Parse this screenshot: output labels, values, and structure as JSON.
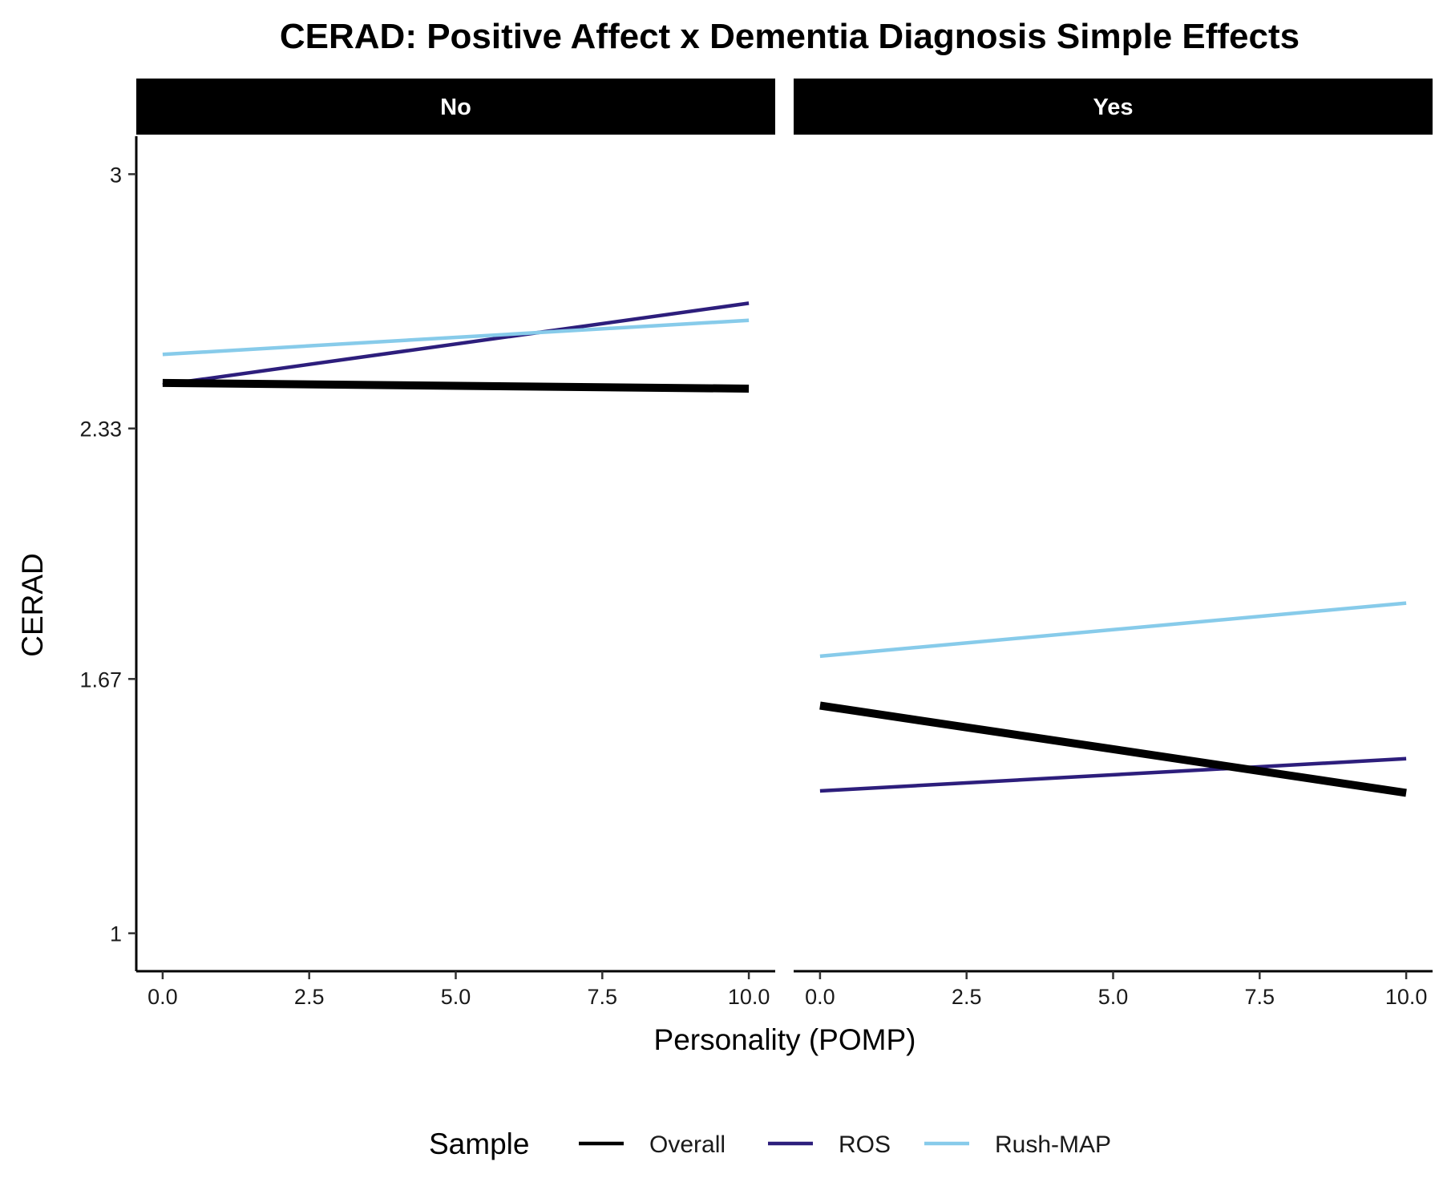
{
  "chart_data": {
    "type": "line",
    "title": "CERAD: Positive Affect x Dementia Diagnosis Simple Effects",
    "xlabel": "Personality (POMP)",
    "ylabel": "CERAD",
    "xlim": [
      -0.45,
      10.45
    ],
    "ylim": [
      0.9,
      3.1
    ],
    "x_ticks": [
      0,
      2.5,
      5,
      7.5,
      10
    ],
    "x_tick_labels": [
      "0.0",
      "2.5",
      "5.0",
      "7.5",
      "10.0"
    ],
    "y_ticks": [
      1,
      1.67,
      2.33,
      3
    ],
    "y_tick_labels": [
      "1",
      "1.67",
      "2.33",
      "3"
    ],
    "grid": false,
    "legend": {
      "title": "Sample",
      "position": "bottom",
      "entries": [
        "Overall",
        "ROS",
        "Rush-MAP"
      ]
    },
    "colors": {
      "Overall": "#000000",
      "ROS": "#2d1e7c",
      "Rush-MAP": "#87cbea"
    },
    "panels": [
      {
        "label": "No",
        "series": [
          {
            "name": "Overall",
            "x": [
              0,
              10
            ],
            "y": [
              2.45,
              2.435
            ]
          },
          {
            "name": "ROS",
            "x": [
              0,
              10
            ],
            "y": [
              2.445,
              2.66
            ]
          },
          {
            "name": "Rush-MAP",
            "x": [
              0,
              10
            ],
            "y": [
              2.525,
              2.615
            ]
          }
        ]
      },
      {
        "label": "Yes",
        "series": [
          {
            "name": "Overall",
            "x": [
              0,
              10
            ],
            "y": [
              1.6,
              1.37
            ]
          },
          {
            "name": "ROS",
            "x": [
              0,
              10
            ],
            "y": [
              1.375,
              1.46
            ]
          },
          {
            "name": "Rush-MAP",
            "x": [
              0,
              10
            ],
            "y": [
              1.73,
              1.87
            ]
          }
        ]
      }
    ]
  }
}
